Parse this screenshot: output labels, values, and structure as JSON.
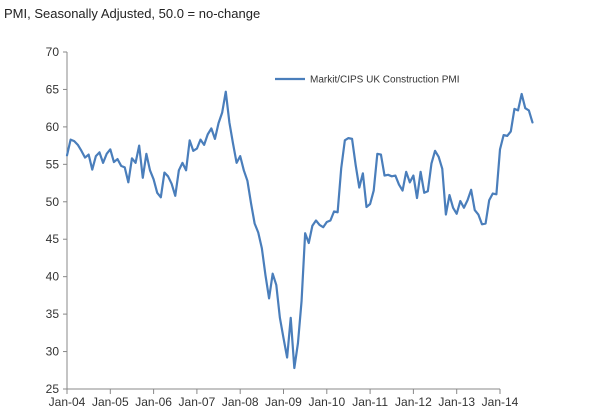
{
  "chart_data": {
    "type": "line",
    "title": "PMI, Seasonally Adjusted, 50.0 = no-change",
    "xlabel": "",
    "ylabel": "",
    "ylim": [
      25,
      70
    ],
    "y_ticks": [
      25,
      30,
      35,
      40,
      45,
      50,
      55,
      60,
      65,
      70
    ],
    "x_ticks": [
      "Jan-04",
      "Jan-05",
      "Jan-06",
      "Jan-07",
      "Jan-08",
      "Jan-09",
      "Jan-10",
      "Jan-11",
      "Jan-12",
      "Jan-13",
      "Jan-14"
    ],
    "grid": false,
    "legend_position": "top-right",
    "series_color": "#4a7ebb",
    "series": [
      {
        "name": "Markit/CIPS UK Construction PMI",
        "start": "Jan-04",
        "frequency": "monthly",
        "values": [
          56.2,
          58.3,
          58.1,
          57.6,
          56.8,
          55.9,
          56.3,
          54.3,
          56.1,
          56.6,
          55.2,
          56.4,
          57.0,
          55.3,
          55.7,
          54.8,
          54.6,
          52.6,
          55.8,
          55.2,
          57.5,
          53.2,
          56.4,
          54.2,
          53.0,
          51.2,
          50.6,
          53.9,
          53.4,
          52.4,
          50.8,
          54.2,
          55.2,
          54.2,
          58.2,
          56.8,
          57.1,
          58.3,
          57.6,
          59.0,
          59.8,
          58.4,
          60.5,
          61.9,
          64.7,
          60.6,
          57.8,
          55.2,
          56.1,
          54.2,
          52.8,
          49.8,
          47.1,
          45.9,
          43.8,
          40.2,
          37.1,
          40.4,
          38.9,
          34.5,
          31.8,
          29.2,
          34.5,
          27.8,
          31.1,
          36.7,
          45.8,
          44.5,
          46.8,
          47.5,
          46.9,
          46.6,
          47.3,
          47.5,
          48.7,
          48.6,
          54.5,
          58.2,
          58.5,
          58.4,
          54.9,
          51.9,
          53.8,
          49.3,
          49.7,
          51.5,
          56.4,
          56.3,
          53.5,
          53.6,
          53.4,
          53.5,
          52.3,
          51.5,
          54.0,
          52.6,
          53.5,
          50.5,
          54.0,
          51.2,
          51.4,
          55.1,
          56.8,
          56.0,
          54.4,
          48.3,
          50.9,
          49.2,
          48.4,
          50.1,
          49.2,
          50.2,
          51.6,
          48.9,
          48.3,
          47.0,
          47.1,
          50.2,
          51.1,
          51.0,
          57.0,
          58.9,
          58.8,
          59.4,
          62.4,
          62.2,
          64.4,
          62.5,
          62.2,
          60.6
        ]
      }
    ]
  }
}
